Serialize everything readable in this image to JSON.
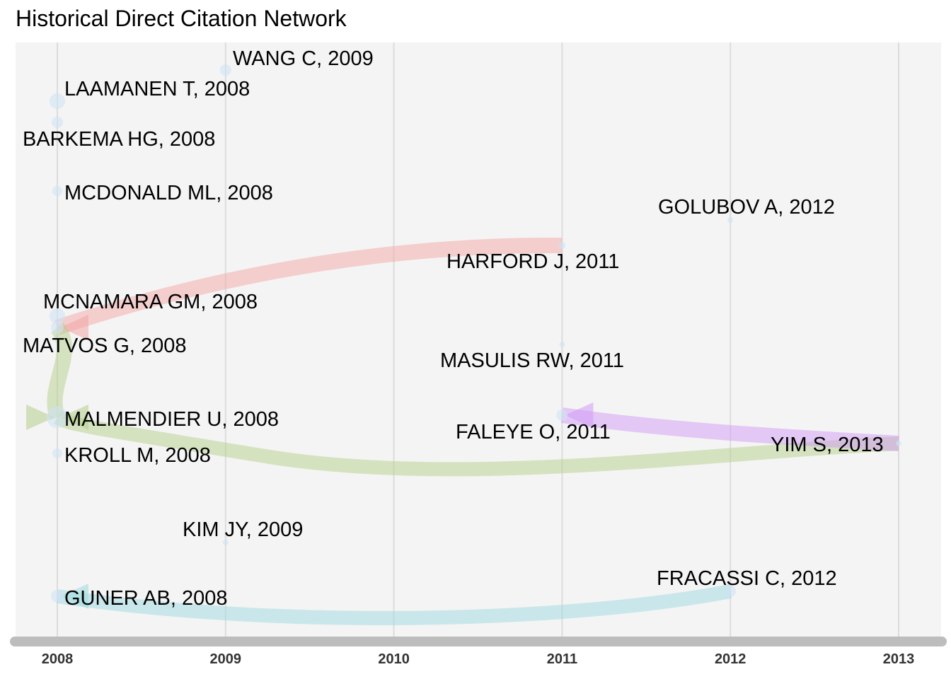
{
  "chart_data": {
    "type": "network",
    "title": "Historical Direct Citation Network",
    "xlabel": "",
    "ylabel": "",
    "xlim": [
      2008,
      2013
    ],
    "x_ticks": [
      2008,
      2009,
      2010,
      2011,
      2012,
      2013
    ],
    "grid": true,
    "legend": "none",
    "nodes": [
      {
        "label": "WANG C, 2009",
        "year": 2009,
        "size": 2
      },
      {
        "label": "LAAMANEN T, 2008",
        "year": 2008,
        "size": 3
      },
      {
        "label": "BARKEMA HG, 2008",
        "year": 2008,
        "size": 2
      },
      {
        "label": "MCDONALD ML, 2008",
        "year": 2008,
        "size": 1
      },
      {
        "label": "GOLUBOV A, 2012",
        "year": 2012,
        "size": 1
      },
      {
        "label": "HARFORD J, 2011",
        "year": 2011,
        "size": 1
      },
      {
        "label": "MCNAMARA GM, 2008",
        "year": 2008,
        "size": 3
      },
      {
        "label": "MATVOS G, 2008",
        "year": 2008,
        "size": 2
      },
      {
        "label": "MASULIS RW, 2011",
        "year": 2011,
        "size": 1
      },
      {
        "label": "MALMENDIER U, 2008",
        "year": 2008,
        "size": 4
      },
      {
        "label": "FALEYE O, 2011",
        "year": 2011,
        "size": 2
      },
      {
        "label": "YIM S, 2013",
        "year": 2013,
        "size": 1
      },
      {
        "label": "KROLL M, 2008",
        "year": 2008,
        "size": 1
      },
      {
        "label": "KIM JY, 2009",
        "year": 2009,
        "size": 1
      },
      {
        "label": "FRACASSI C, 2012",
        "year": 2012,
        "size": 2
      },
      {
        "label": "GUNER AB, 2008",
        "year": 2008,
        "size": 2
      }
    ],
    "edges": [
      {
        "from": "HARFORD J, 2011",
        "to": "MATVOS G, 2008",
        "color": "#f4a6a6"
      },
      {
        "from": "MATVOS G, 2008",
        "to": "MALMENDIER U, 2008",
        "color": "#b5d08a"
      },
      {
        "from": "YIM S, 2013",
        "to": "MALMENDIER U, 2008",
        "color": "#b5d08a"
      },
      {
        "from": "YIM S, 2013",
        "to": "FALEYE O, 2011",
        "color": "#d29af5"
      },
      {
        "from": "FRACASSI C, 2012",
        "to": "GUNER AB, 2008",
        "color": "#9edadf"
      }
    ]
  }
}
